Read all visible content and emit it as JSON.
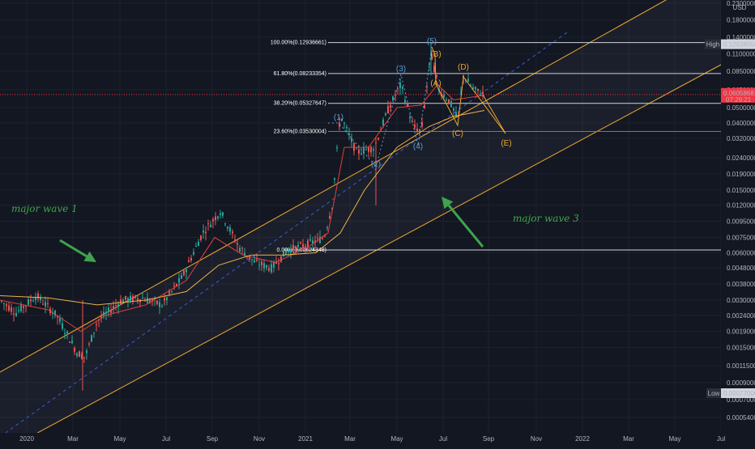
{
  "chart_data": {
    "type": "candlestick",
    "scale": "log",
    "currency": "USD",
    "colors": {
      "background": "#131722",
      "grid": "#1e222d",
      "channel": "#f0a830",
      "channel_mid": "#3a5dd6",
      "fib_line": "#d1d4dc",
      "fib_line_236": "#e04d4d",
      "candle_up": "#26a69a",
      "candle_down": "#ef5350",
      "ma_fast": "#e0413b",
      "ma_slow": "#f0b04a",
      "price_line": "#f23645",
      "annotation": "#3fa34d",
      "wave_blue": "#5b9bd5",
      "wave_orange": "#f0a830"
    },
    "y_ticks": [
      "0.23000000",
      "0.18000000",
      "0.14000000",
      "0.11000000",
      "0.08500000",
      "0.06500000",
      "0.05000000",
      "0.04000000",
      "0.03200000",
      "0.02400000",
      "0.01900000",
      "0.01500000",
      "0.01200000",
      "0.00950000",
      "0.00750000",
      "0.00600000",
      "0.00480000",
      "0.00380000",
      "0.00300000",
      "0.00240000",
      "0.00190000",
      "0.00150000",
      "0.00115000",
      "0.00090000",
      "0.00070000",
      "0.00054000"
    ],
    "x_ticks": [
      "2020",
      "Mar",
      "May",
      "Jul",
      "Sep",
      "Nov",
      "2021",
      "Mar",
      "May",
      "Jul",
      "Sep",
      "Nov",
      "2022",
      "Mar",
      "May",
      "Jul"
    ],
    "fib_levels": [
      {
        "label": "100.00%(0.12936661)",
        "value": 0.12936661
      },
      {
        "label": "61.80%(0.08233354)",
        "value": 0.08233354
      },
      {
        "label": "38.20%(0.05327647)",
        "value": 0.05327647
      },
      {
        "label": "23.60%(0.03530004)",
        "value": 0.03530004
      },
      {
        "label": "0.00%(0.00624348)",
        "value": 0.00624348
      }
    ],
    "high_label": {
      "tag": "High",
      "value": "0.12638056"
    },
    "low_label": {
      "tag": "Low",
      "value": "0.00077000"
    },
    "last_price": {
      "value": "0.06058681",
      "countdown": "07:29:21"
    },
    "wave_labels": [
      {
        "text": "(1)",
        "color": "blue"
      },
      {
        "text": "(2)",
        "color": "blue"
      },
      {
        "text": "(3)",
        "color": "blue"
      },
      {
        "text": "(4)",
        "color": "blue"
      },
      {
        "text": "(5)",
        "color": "blue"
      },
      {
        "text": "(A)",
        "color": "orange"
      },
      {
        "text": "(B)",
        "color": "orange"
      },
      {
        "text": "(C)",
        "color": "orange"
      },
      {
        "text": "(D)",
        "color": "orange"
      },
      {
        "text": "(E)",
        "color": "orange"
      }
    ],
    "annotations": [
      "major wave 1",
      "major wave 3"
    ]
  }
}
